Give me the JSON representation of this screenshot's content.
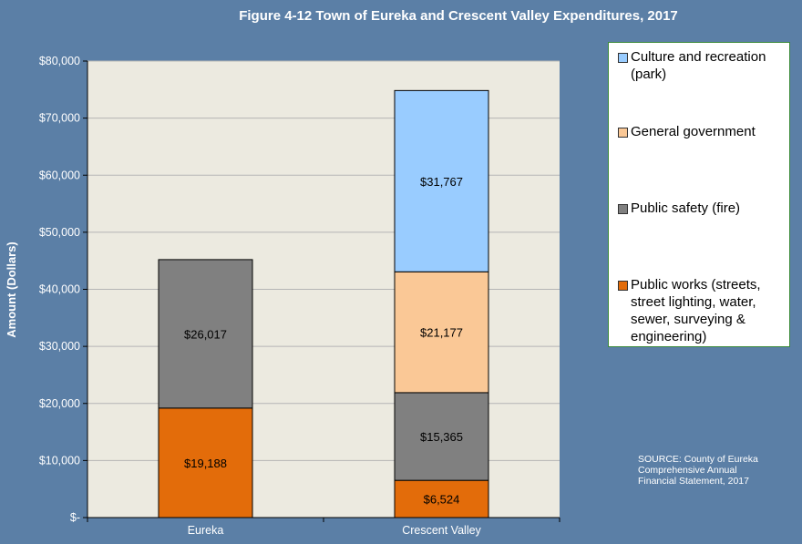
{
  "chart_data": {
    "type": "bar",
    "stacked": true,
    "title": "Figure 4-12 Town of Eureka and Crescent Valley Expenditures, 2017",
    "ylabel": "Amount (Dollars)",
    "xlabel": "",
    "ylim": [
      0,
      80000
    ],
    "y_ticks": [
      "$-",
      "$10,000",
      "$20,000",
      "$30,000",
      "$40,000",
      "$50,000",
      "$60,000",
      "$70,000",
      "$80,000"
    ],
    "categories": [
      "Eureka",
      "Crescent Valley"
    ],
    "series": [
      {
        "name": "Public works (streets, street lighting, water, sewer, surveying & engineering)",
        "color": "#e36c0a",
        "values": [
          19188,
          6524
        ],
        "labels": [
          "$19,188",
          "$6,524"
        ]
      },
      {
        "name": "Public safety (fire)",
        "color": "#808080",
        "values": [
          26017,
          15365
        ],
        "labels": [
          "$26,017",
          "$15,365"
        ]
      },
      {
        "name": "General government",
        "color": "#fac896",
        "values": [
          0,
          21177
        ],
        "labels": [
          "",
          "$21,177"
        ]
      },
      {
        "name": "Culture and recreation (park)",
        "color": "#99ccff",
        "values": [
          0,
          31767
        ],
        "labels": [
          "",
          "$31,767"
        ]
      }
    ],
    "legend_position": "right",
    "grid": true
  },
  "legend": {
    "items": [
      {
        "label": "Culture and recreation (park)",
        "color": "#99ccff"
      },
      {
        "label": "General government",
        "color": "#fac896"
      },
      {
        "label": "Public safety (fire)",
        "color": "#808080"
      },
      {
        "label": "Public works (streets, street lighting, water, sewer, surveying & engineering)",
        "color": "#e36c0a"
      }
    ]
  },
  "source_note": "SOURCE: County of Eureka Comprehensive Annual Financial Statement, 2017"
}
